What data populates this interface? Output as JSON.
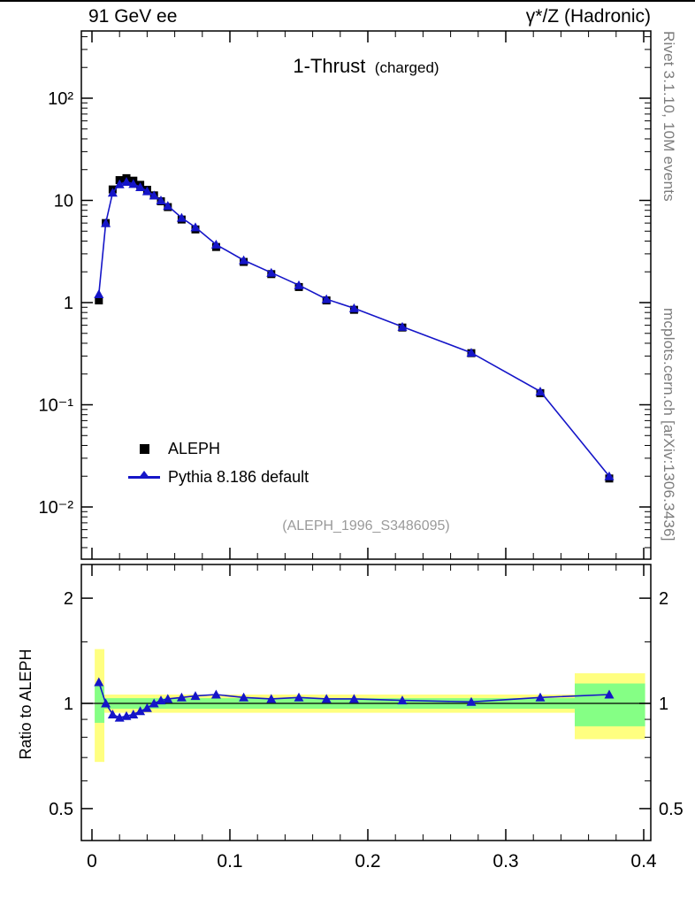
{
  "header": {
    "left": "91 GeV ee",
    "right": "γ*/Z (Hadronic)"
  },
  "title": {
    "main": "1-Thrust",
    "sub": "(charged)"
  },
  "ref_label": "(ALEPH_1996_S3486095)",
  "watermarks": {
    "rivet": "Rivet 3.1.10,  10M events",
    "mcplots": "mcplots.cern.ch [arXiv:1306.3436]"
  },
  "legend": [
    {
      "label": "ALEPH",
      "marker": "square",
      "color": "#000000"
    },
    {
      "label": "Pythia 8.186 default",
      "marker": "triangle",
      "color": "#1515c8"
    }
  ],
  "colors": {
    "yellow_band": "#ffff80",
    "green_band": "#85ff85",
    "axis": "#000000",
    "watermark": "#7d7d7d",
    "ref_text": "#9a9a9a"
  },
  "chart_data": [
    {
      "type": "line",
      "panel": "main",
      "title": "1-Thrust (charged)",
      "xlim": [
        -0.0077,
        0.4051
      ],
      "ylim": [
        0.003,
        450
      ],
      "ylog": true,
      "xticks": {
        "major": [
          {
            "v": 0,
            "label": "0"
          },
          {
            "v": 0.1,
            "label": "0.1"
          },
          {
            "v": 0.2,
            "label": "0.2"
          },
          {
            "v": 0.3,
            "label": "0.3"
          },
          {
            "v": 0.4,
            "label": "0.4"
          }
        ],
        "minor_step": 0.02
      },
      "yticks": {
        "major": [
          {
            "v": 100,
            "label": "10²"
          },
          {
            "v": 10,
            "label": "10"
          },
          {
            "v": 1,
            "label": "1"
          },
          {
            "v": 0.1,
            "label": "10⁻¹"
          },
          {
            "v": 0.01,
            "label": "10⁻²"
          }
        ]
      },
      "series": [
        {
          "name": "ALEPH",
          "marker": "square",
          "color": "#000000",
          "line": false,
          "x": [
            0.005,
            0.01,
            0.015,
            0.02,
            0.025,
            0.03,
            0.035,
            0.04,
            0.045,
            0.05,
            0.055,
            0.065,
            0.075,
            0.09,
            0.11,
            0.13,
            0.15,
            0.17,
            0.19,
            0.225,
            0.275,
            0.325,
            0.375
          ],
          "y": [
            1.05,
            6.0,
            12.8,
            15.8,
            16.5,
            15.6,
            14.2,
            12.7,
            11.2,
            9.8,
            8.6,
            6.5,
            5.2,
            3.5,
            2.5,
            1.9,
            1.42,
            1.05,
            0.85,
            0.57,
            0.32,
            0.13,
            0.019
          ]
        },
        {
          "name": "Pythia 8.186 default",
          "marker": "triangle",
          "color": "#1515c8",
          "line": true,
          "x": [
            0.005,
            0.01,
            0.015,
            0.02,
            0.025,
            0.03,
            0.035,
            0.04,
            0.045,
            0.05,
            0.055,
            0.065,
            0.075,
            0.09,
            0.11,
            0.13,
            0.15,
            0.17,
            0.19,
            0.225,
            0.275,
            0.325,
            0.375
          ],
          "y": [
            1.21,
            6.0,
            11.9,
            14.4,
            15.2,
            14.5,
            13.5,
            12.3,
            11.2,
            10.0,
            8.86,
            6.76,
            5.46,
            3.7,
            2.6,
            1.96,
            1.48,
            1.08,
            0.88,
            0.58,
            0.323,
            0.135,
            0.02
          ]
        }
      ]
    },
    {
      "type": "ratio",
      "panel": "ratio",
      "ylabel": "Ratio to ALEPH",
      "ylim": [
        0.4,
        2.5
      ],
      "ylog": true,
      "reference_line": 1,
      "yticks": {
        "major": [
          {
            "v": 2,
            "label": "2"
          },
          {
            "v": 1,
            "label": "1"
          },
          {
            "v": 0.5,
            "label": "0.5"
          }
        ],
        "minor": [
          0.6,
          0.7,
          0.8,
          0.9,
          1.5
        ]
      },
      "bands": [
        {
          "x0": 0.002,
          "x1": 0.009,
          "yellow": [
            0.68,
            1.43
          ],
          "green": [
            0.88,
            1.12
          ]
        },
        {
          "x0": 0.009,
          "x1": 0.35,
          "yellow": [
            0.94,
            1.06
          ],
          "green": [
            0.965,
            1.035
          ]
        },
        {
          "x0": 0.35,
          "x1": 0.401,
          "yellow": [
            0.79,
            1.22
          ],
          "green": [
            0.86,
            1.14
          ]
        }
      ],
      "series": [
        {
          "name": "Pythia 8.186 default / ALEPH",
          "marker": "triangle",
          "color": "#1515c8",
          "line": true,
          "x": [
            0.005,
            0.01,
            0.015,
            0.02,
            0.025,
            0.03,
            0.035,
            0.04,
            0.045,
            0.05,
            0.055,
            0.065,
            0.075,
            0.09,
            0.11,
            0.13,
            0.15,
            0.17,
            0.19,
            0.225,
            0.275,
            0.325,
            0.375
          ],
          "y": [
            1.15,
            1.0,
            0.93,
            0.91,
            0.92,
            0.93,
            0.95,
            0.97,
            1.0,
            1.02,
            1.03,
            1.04,
            1.05,
            1.06,
            1.04,
            1.03,
            1.04,
            1.03,
            1.03,
            1.02,
            1.01,
            1.04,
            1.06
          ]
        }
      ]
    }
  ]
}
